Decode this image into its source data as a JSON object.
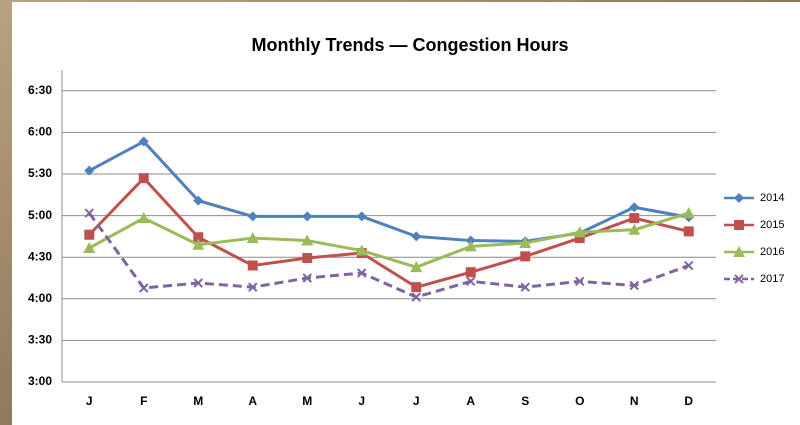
{
  "chart_data": {
    "type": "line",
    "title": "Monthly Trends — Congestion Hours",
    "categories": [
      "J",
      "F",
      "M",
      "A",
      "M",
      "J",
      "J",
      "A",
      "S",
      "O",
      "N",
      "D"
    ],
    "series": [
      {
        "name": "2014",
        "color": "#4f81bd",
        "marker": "diamond",
        "dashed": false,
        "values": [
          5.54,
          5.89,
          5.18,
          4.99,
          4.99,
          4.99,
          4.75,
          4.7,
          4.69,
          4.79,
          5.1,
          4.98
        ]
      },
      {
        "name": "2015",
        "color": "#c0504d",
        "marker": "square",
        "dashed": false,
        "values": [
          4.77,
          5.45,
          4.74,
          4.4,
          4.49,
          4.55,
          4.14,
          4.32,
          4.51,
          4.73,
          4.97,
          4.81
        ]
      },
      {
        "name": "2016",
        "color": "#9bbb59",
        "marker": "triangle",
        "dashed": false,
        "values": [
          4.61,
          4.97,
          4.65,
          4.73,
          4.7,
          4.58,
          4.38,
          4.63,
          4.67,
          4.8,
          4.83,
          5.03
        ]
      },
      {
        "name": "2017",
        "color": "#8064a2",
        "marker": "x",
        "dashed": true,
        "values": [
          5.03,
          4.13,
          4.19,
          4.14,
          4.25,
          4.31,
          4.02,
          4.21,
          4.14,
          4.21,
          4.16,
          4.4
        ]
      }
    ],
    "ylim": [
      3,
      6.75
    ],
    "yticks": [
      {
        "value": 3,
        "label": "3:00"
      },
      {
        "value": 3.5,
        "label": "3:30"
      },
      {
        "value": 4,
        "label": "4:00"
      },
      {
        "value": 4.5,
        "label": "4:30"
      },
      {
        "value": 5,
        "label": "5:00"
      },
      {
        "value": 5.5,
        "label": "5:30"
      },
      {
        "value": 6,
        "label": "6:00"
      },
      {
        "value": 6.5,
        "label": "6:30"
      }
    ],
    "grid": true,
    "legend": "right"
  }
}
